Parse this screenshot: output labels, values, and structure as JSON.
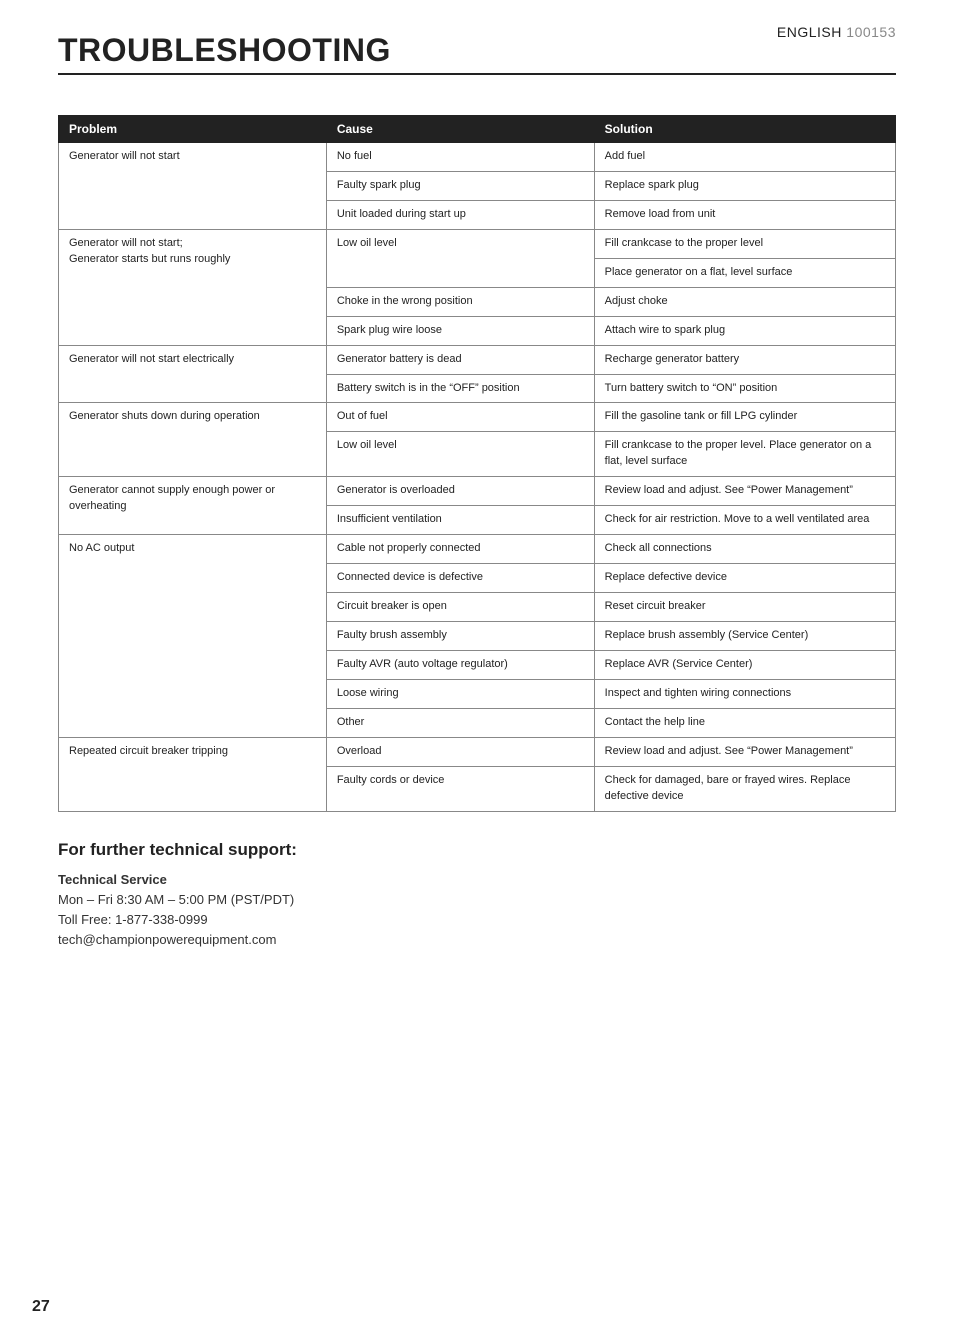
{
  "header": {
    "language": "ENGLISH",
    "model_code": "100153",
    "title": "TROUBLESHOOTING"
  },
  "table": {
    "columns": [
      "Problem",
      "Cause",
      "Solution"
    ],
    "column_colors": {
      "header_bg": "#222222",
      "header_fg": "#ffffff",
      "border": "#888888"
    },
    "groups": [
      {
        "problem": "Generator will not start",
        "rows": [
          {
            "cause": "No fuel",
            "solution": "Add fuel"
          },
          {
            "cause": "Faulty spark plug",
            "solution": "Replace spark plug"
          },
          {
            "cause": "Unit loaded during start up",
            "solution": "Remove load from unit"
          }
        ]
      },
      {
        "problem": "Generator will not start;\nGenerator starts but runs roughly",
        "rows": [
          {
            "cause": "Low oil level",
            "solution": "Fill crankcase to the proper level",
            "extra_solutions": [
              "Place generator on a flat, level surface"
            ]
          },
          {
            "cause": "Choke in the wrong position",
            "solution": "Adjust choke"
          },
          {
            "cause": "Spark plug wire loose",
            "solution": "Attach wire to spark plug"
          }
        ]
      },
      {
        "problem": "Generator will not start electrically",
        "rows": [
          {
            "cause": "Generator battery is dead",
            "solution": "Recharge generator battery"
          },
          {
            "cause": "Battery switch is in the “OFF” position",
            "solution": "Turn battery switch to “ON” position"
          }
        ]
      },
      {
        "problem": "Generator shuts down during operation",
        "rows": [
          {
            "cause": "Out of fuel",
            "solution": "Fill the gasoline tank or fill LPG cylinder"
          },
          {
            "cause": "Low oil level",
            "solution": "Fill crankcase to the proper level. Place generator on a flat, level surface"
          }
        ]
      },
      {
        "problem": "Generator cannot supply enough power or overheating",
        "rows": [
          {
            "cause": "Generator is overloaded",
            "solution": "Review load and adjust. See “Power Management”"
          },
          {
            "cause": "Insufficient ventilation",
            "solution": "Check for air restriction. Move to a well ventilated area"
          }
        ]
      },
      {
        "problem": "No AC output",
        "rows": [
          {
            "cause": "Cable not properly connected",
            "solution": "Check all connections"
          },
          {
            "cause": "Connected device is defective",
            "solution": "Replace defective device"
          },
          {
            "cause": "Circuit breaker is open",
            "solution": "Reset circuit breaker"
          },
          {
            "cause": "Faulty brush assembly",
            "solution": "Replace brush assembly (Service Center)"
          },
          {
            "cause": "Faulty AVR (auto voltage regulator)",
            "solution": "Replace AVR (Service Center)"
          },
          {
            "cause": "Loose wiring",
            "solution": "Inspect and tighten wiring connections"
          },
          {
            "cause": "Other",
            "solution": "Contact the help line"
          }
        ]
      },
      {
        "problem": "Repeated circuit breaker tripping",
        "rows": [
          {
            "cause": "Overload",
            "solution": "Review load and adjust. See “Power Management”"
          },
          {
            "cause": "Faulty cords or device",
            "solution": "Check for damaged, bare or frayed wires. Replace defective device"
          }
        ]
      }
    ]
  },
  "support": {
    "heading": "For further technical support:",
    "service_title": "Technical Service",
    "hours": "Mon – Fri 8:30 AM – 5:00 PM (PST/PDT)",
    "phone": "Toll Free: 1-877-338-0999",
    "email": "tech@championpowerequipment.com"
  },
  "page_number": "27",
  "typography": {
    "title_fontsize": 32,
    "table_fontsize": 11,
    "support_heading_fontsize": 17,
    "body_fontsize": 13,
    "page_number_fontsize": 16
  },
  "colors": {
    "text": "#222222",
    "muted": "#888888",
    "background": "#ffffff"
  }
}
